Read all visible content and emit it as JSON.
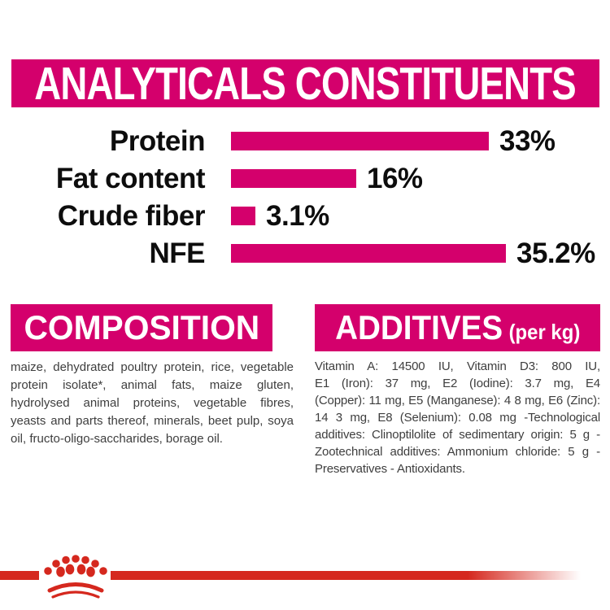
{
  "colors": {
    "brand_pink": "#D4006C",
    "brand_red": "#D5281E",
    "body_text": "#3E3E3E",
    "label_black": "#0d0d0d",
    "background": "#ffffff"
  },
  "header": {
    "title": "ANALYTICALS CONSTITUENTS"
  },
  "chart_data": {
    "type": "bar",
    "orientation": "horizontal",
    "title": "ANALYTICALS CONSTITUENTS",
    "categories": [
      "Protein",
      "Fat content",
      "Crude fiber",
      "NFE"
    ],
    "values": [
      33,
      16,
      3.1,
      35.2
    ],
    "value_labels": [
      "33%",
      "16%",
      "3.1%",
      "35.2%"
    ],
    "unit": "%",
    "bar_color": "#D4006C",
    "xlim": [
      0,
      36
    ],
    "grid": "off",
    "legend": "none"
  },
  "composition": {
    "heading": "COMPOSITION",
    "lines": [
      "maize, dehydrated poultry protein, rice, vegetable",
      "protein isolate*, animal fats, maize gluten,",
      "hydrolysed animal proteins, vegetable fibres,",
      "yeasts and parts thereof, minerals, beet pulp, soya",
      "oil, fructo-oligo-saccharides, borage oil."
    ],
    "full_text": "maize, dehydrated poultry protein, rice, vegetable protein isolate*, animal fats, maize gluten, hydrolysed animal proteins, vegetable fibres, yeasts and parts thereof, minerals, beet pulp, soya oil, fructo-oligo-saccharides, borage oil."
  },
  "additives": {
    "heading": "ADDITIVES",
    "heading_suffix": "(per kg)",
    "lines": [
      "Vitamin A: 14500 IU, Vitamin D3: 800 IU,",
      "E1 (Iron): 37 mg, E2 (Iodine): 3.7 mg, E4",
      "(Copper): 11 mg, E5 (Manganese): 4 8 mg, E6 (Zinc):",
      "14 3 mg, E8 (Selenium): 0.08 mg -Technological",
      "additives: Clinoptilolite of sedimentary origin: 5 g -",
      "Zootechnical additives: Ammonium chloride: 5 g -",
      "Preservatives - Antioxidants."
    ],
    "full_text": "Vitamin A: 14500 IU, Vitamin D3: 800 IU, E1 (Iron): 37 mg, E2 (Iodine): 3.7 mg, E4 (Copper): 11 mg, E5 (Manganese): 4 8 mg, E6 (Zinc): 14 3 mg, E8 (Selenium): 0.08 mg -Technological additives: Clinoptilolite of sedimentary origin: 5 g - Zootechnical additives: Ammonium chloride: 5 g - Preservatives - Antioxidants.",
    "full_heading": "ADDITIVES (per kg)"
  },
  "footer": {
    "logo": "royal-canin-crown"
  }
}
